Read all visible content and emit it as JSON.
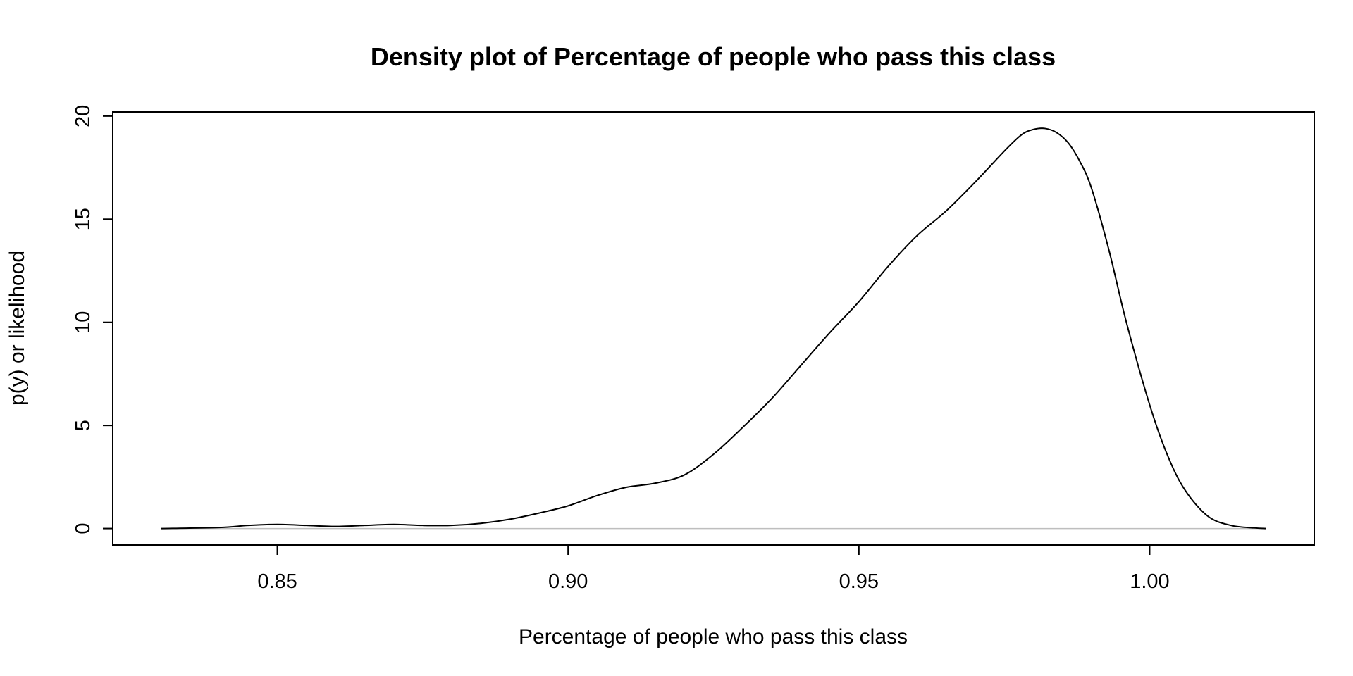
{
  "chart_data": {
    "type": "line",
    "title": "Density plot of Percentage of people who pass this class",
    "xlabel": "Percentage of people who pass this class",
    "ylabel": "p(y) or likelihood",
    "xlim": [
      0.8217,
      1.0283
    ],
    "ylim": [
      -0.8,
      20.2
    ],
    "xticks": [
      0.85,
      0.9,
      0.95,
      1.0
    ],
    "xtick_labels": [
      "0.85",
      "0.90",
      "0.95",
      "1.00"
    ],
    "yticks": [
      0,
      5,
      10,
      15,
      20
    ],
    "ytick_labels": [
      "0",
      "5",
      "10",
      "15",
      "20"
    ],
    "grid": false,
    "reference_line": {
      "y": 0,
      "color": "#bebebe"
    },
    "series": [
      {
        "color": "#000000",
        "x": [
          0.83,
          0.84,
          0.845,
          0.85,
          0.855,
          0.86,
          0.865,
          0.87,
          0.875,
          0.88,
          0.885,
          0.89,
          0.895,
          0.9,
          0.905,
          0.91,
          0.915,
          0.92,
          0.925,
          0.93,
          0.935,
          0.94,
          0.945,
          0.95,
          0.955,
          0.96,
          0.965,
          0.97,
          0.975,
          0.978,
          0.98,
          0.982,
          0.984,
          0.986,
          0.988,
          0.99,
          0.993,
          0.996,
          1.0,
          1.003,
          1.006,
          1.01,
          1.014,
          1.018,
          1.02
        ],
        "y": [
          0.0,
          0.05,
          0.15,
          0.2,
          0.15,
          0.1,
          0.15,
          0.2,
          0.15,
          0.15,
          0.25,
          0.45,
          0.75,
          1.1,
          1.6,
          2.0,
          2.2,
          2.6,
          3.6,
          4.9,
          6.3,
          7.9,
          9.5,
          11.0,
          12.7,
          14.2,
          15.4,
          16.8,
          18.3,
          19.1,
          19.35,
          19.4,
          19.2,
          18.7,
          17.8,
          16.5,
          13.5,
          10.0,
          6.0,
          3.6,
          1.9,
          0.6,
          0.15,
          0.03,
          0.0
        ]
      }
    ]
  }
}
